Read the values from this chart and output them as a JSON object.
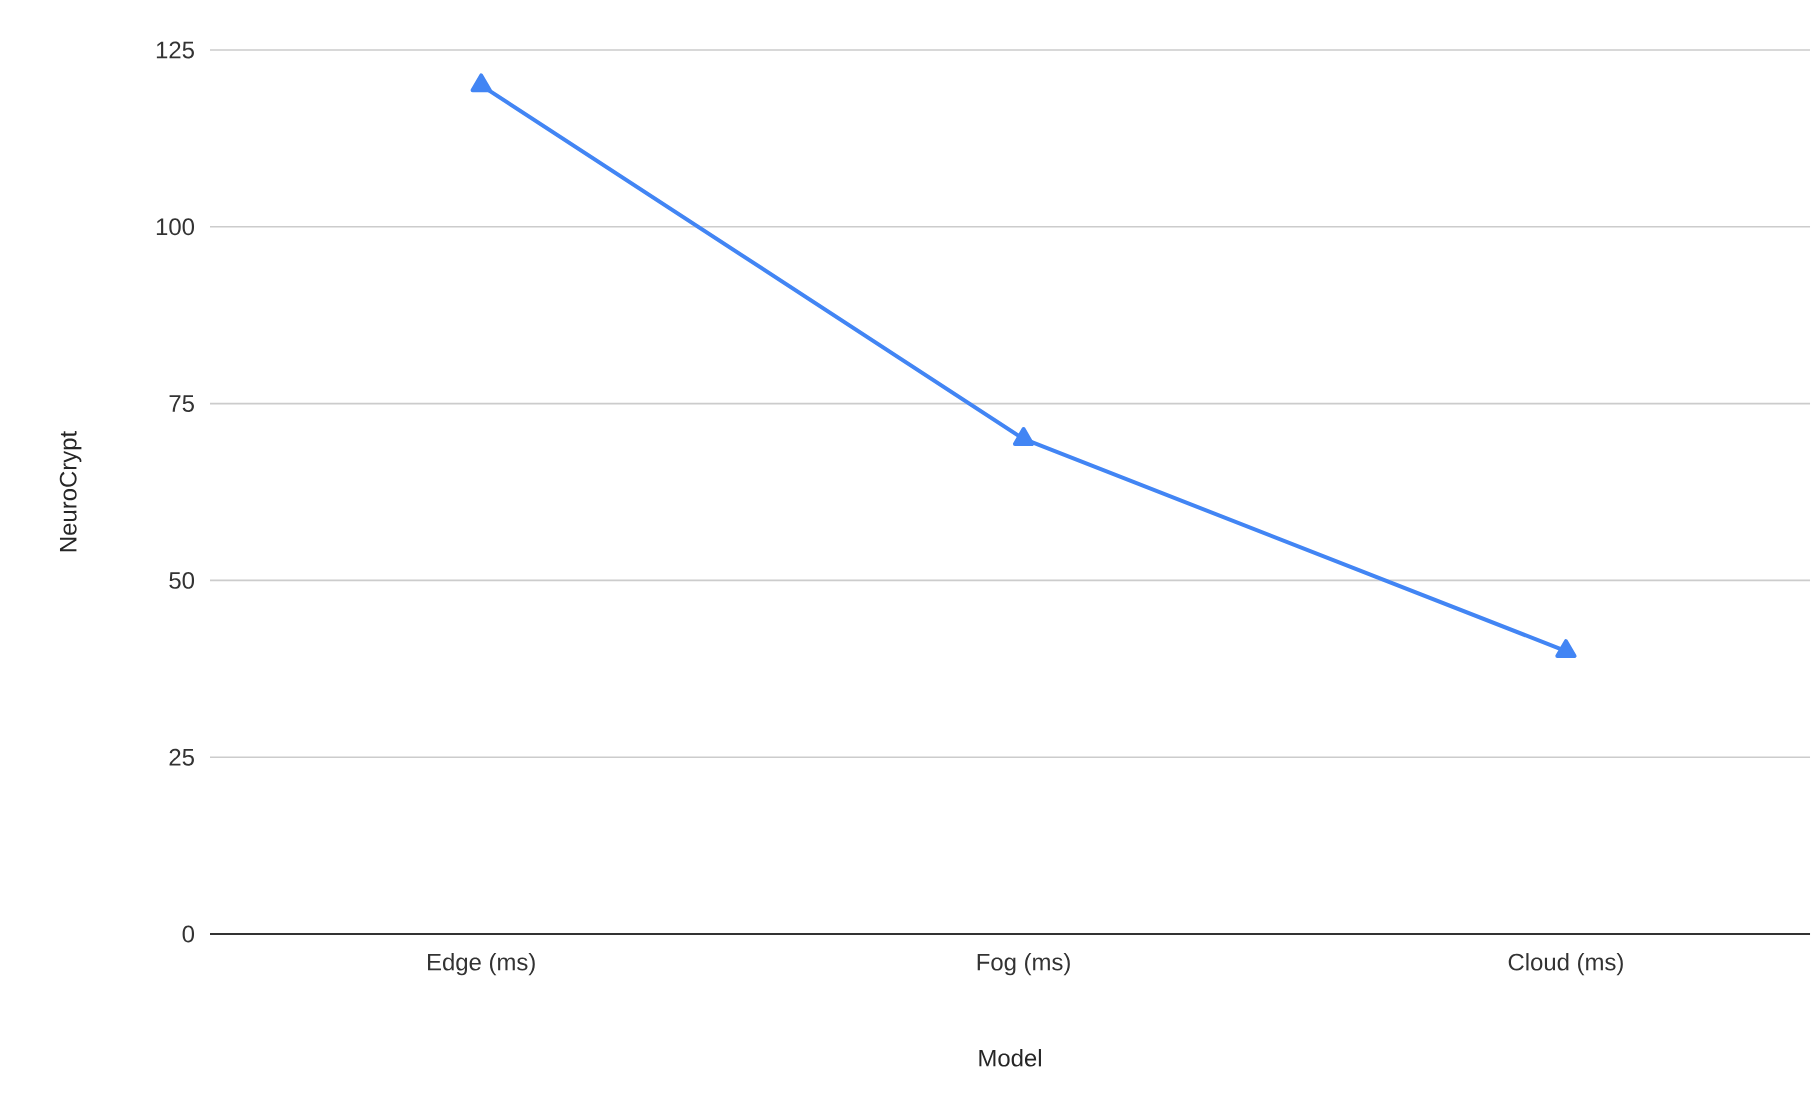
{
  "chart_data": {
    "type": "line",
    "xlabel": "Model",
    "ylabel": "NeuroCrypt",
    "categories": [
      "Edge (ms)",
      "Fog (ms)",
      "Cloud (ms)"
    ],
    "values": [
      120,
      70,
      40
    ],
    "color": "#4285f4",
    "marker": "triangle",
    "ylim": [
      0,
      125
    ],
    "yticks": [
      0,
      25,
      50,
      75,
      100,
      125
    ],
    "grid": "y"
  }
}
